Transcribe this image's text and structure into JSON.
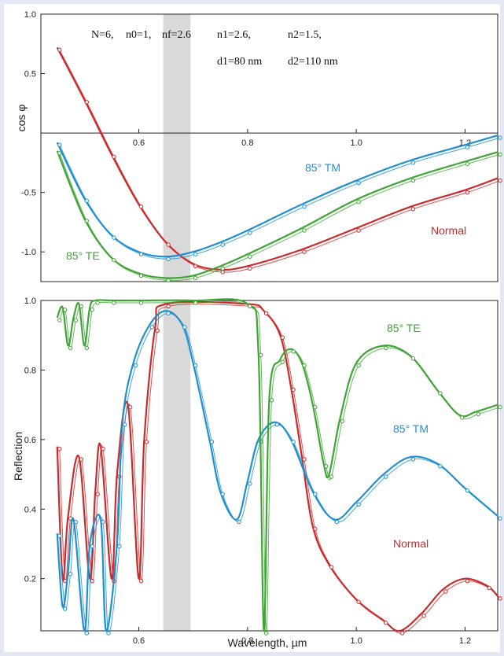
{
  "chart_data": [
    {
      "type": "line",
      "ylabel": "cos φ",
      "xlim": [
        0.42,
        1.26
      ],
      "ylim": [
        -1.25,
        1.0
      ],
      "xticks": [
        "0.6",
        "0.8",
        "1.0",
        "1.2"
      ],
      "yticks": [
        "1.0",
        "0.5",
        "-0.5",
        "-1.0"
      ],
      "grid": false,
      "params_line1": {
        "N": "N=6,",
        "n0": "n0=1,",
        "nf": "nf=2.6",
        "n1": "n1=2.6,",
        "n2": "n2=1.5,"
      },
      "params_line2": {
        "d1": "d1=80 nm",
        "d2": "d2=110 nm"
      },
      "highlight_band": [
        0.645,
        0.695
      ],
      "series": [
        {
          "name": "Normal",
          "color": "#cc2a2a",
          "x": [
            0.45,
            0.5,
            0.55,
            0.6,
            0.65,
            0.7,
            0.75,
            0.8,
            0.9,
            1.0,
            1.1,
            1.2,
            1.26
          ],
          "y": [
            0.72,
            0.28,
            -0.18,
            -0.6,
            -0.92,
            -1.1,
            -1.15,
            -1.12,
            -0.98,
            -0.8,
            -0.62,
            -0.48,
            -0.38
          ]
        },
        {
          "name": "85° TM",
          "color": "#1f8fd1",
          "x": [
            0.45,
            0.5,
            0.55,
            0.6,
            0.65,
            0.7,
            0.75,
            0.8,
            0.9,
            1.0,
            1.1,
            1.2,
            1.26
          ],
          "y": [
            -0.08,
            -0.55,
            -0.86,
            -1.0,
            -1.04,
            -1.0,
            -0.92,
            -0.82,
            -0.6,
            -0.4,
            -0.23,
            -0.1,
            -0.02
          ]
        },
        {
          "name": "85° TE",
          "color": "#3fa535",
          "x": [
            0.45,
            0.5,
            0.55,
            0.6,
            0.65,
            0.7,
            0.75,
            0.8,
            0.9,
            1.0,
            1.1,
            1.2,
            1.26
          ],
          "y": [
            -0.15,
            -0.72,
            -1.05,
            -1.18,
            -1.22,
            -1.2,
            -1.12,
            -1.02,
            -0.8,
            -0.56,
            -0.38,
            -0.24,
            -0.16
          ]
        }
      ]
    },
    {
      "type": "line",
      "xlabel": "Wavelength,  µm",
      "ylabel": "Reflection",
      "xlim": [
        0.42,
        1.26
      ],
      "ylim": [
        0.05,
        1.0
      ],
      "xticks": [
        "0.6",
        "0.8",
        "1.0",
        "1.2"
      ],
      "yticks": [
        "1.0",
        "0.8",
        "0.6",
        "0.4",
        "0.2"
      ],
      "grid": false,
      "highlight_band": [
        0.645,
        0.695
      ],
      "series": [
        {
          "name": "Normal",
          "color": "#cc2a2a",
          "x": [
            0.45,
            0.46,
            0.47,
            0.49,
            0.51,
            0.52,
            0.53,
            0.55,
            0.56,
            0.58,
            0.6,
            0.61,
            0.63,
            0.65,
            0.8,
            0.83,
            0.86,
            0.88,
            0.9,
            0.92,
            0.95,
            1.0,
            1.05,
            1.08,
            1.12,
            1.16,
            1.2,
            1.24,
            1.26
          ],
          "y": [
            0.58,
            0.2,
            0.38,
            0.55,
            0.2,
            0.45,
            0.58,
            0.2,
            0.5,
            0.7,
            0.2,
            0.6,
            0.92,
            0.99,
            0.99,
            0.97,
            0.9,
            0.75,
            0.55,
            0.35,
            0.24,
            0.14,
            0.08,
            0.05,
            0.1,
            0.17,
            0.2,
            0.18,
            0.15
          ]
        },
        {
          "name": "85° TM",
          "color": "#1f8fd1",
          "x": [
            0.45,
            0.46,
            0.47,
            0.48,
            0.5,
            0.51,
            0.53,
            0.54,
            0.56,
            0.57,
            0.59,
            0.62,
            0.65,
            0.68,
            0.7,
            0.73,
            0.75,
            0.78,
            0.8,
            0.82,
            0.85,
            0.88,
            0.92,
            0.96,
            1.0,
            1.05,
            1.1,
            1.15,
            1.2,
            1.26
          ],
          "y": [
            0.33,
            0.12,
            0.22,
            0.37,
            0.05,
            0.3,
            0.37,
            0.05,
            0.3,
            0.65,
            0.82,
            0.93,
            0.97,
            0.93,
            0.82,
            0.6,
            0.45,
            0.37,
            0.48,
            0.6,
            0.65,
            0.6,
            0.45,
            0.37,
            0.42,
            0.5,
            0.55,
            0.53,
            0.46,
            0.38
          ]
        },
        {
          "name": "85° TE",
          "color": "#3fa535",
          "x": [
            0.45,
            0.46,
            0.47,
            0.48,
            0.49,
            0.5,
            0.51,
            0.52,
            0.55,
            0.6,
            0.7,
            0.8,
            0.82,
            0.83,
            0.84,
            0.86,
            0.88,
            0.9,
            0.92,
            0.94,
            0.95,
            0.97,
            1.0,
            1.05,
            1.1,
            1.15,
            1.19,
            1.22,
            1.26
          ],
          "y": [
            0.95,
            0.98,
            0.87,
            0.95,
            0.99,
            0.87,
            0.98,
            1.0,
            1.0,
            1.0,
            1.0,
            0.99,
            0.85,
            0.05,
            0.72,
            0.83,
            0.86,
            0.82,
            0.7,
            0.53,
            0.5,
            0.66,
            0.82,
            0.87,
            0.84,
            0.74,
            0.67,
            0.68,
            0.7
          ]
        }
      ]
    }
  ]
}
